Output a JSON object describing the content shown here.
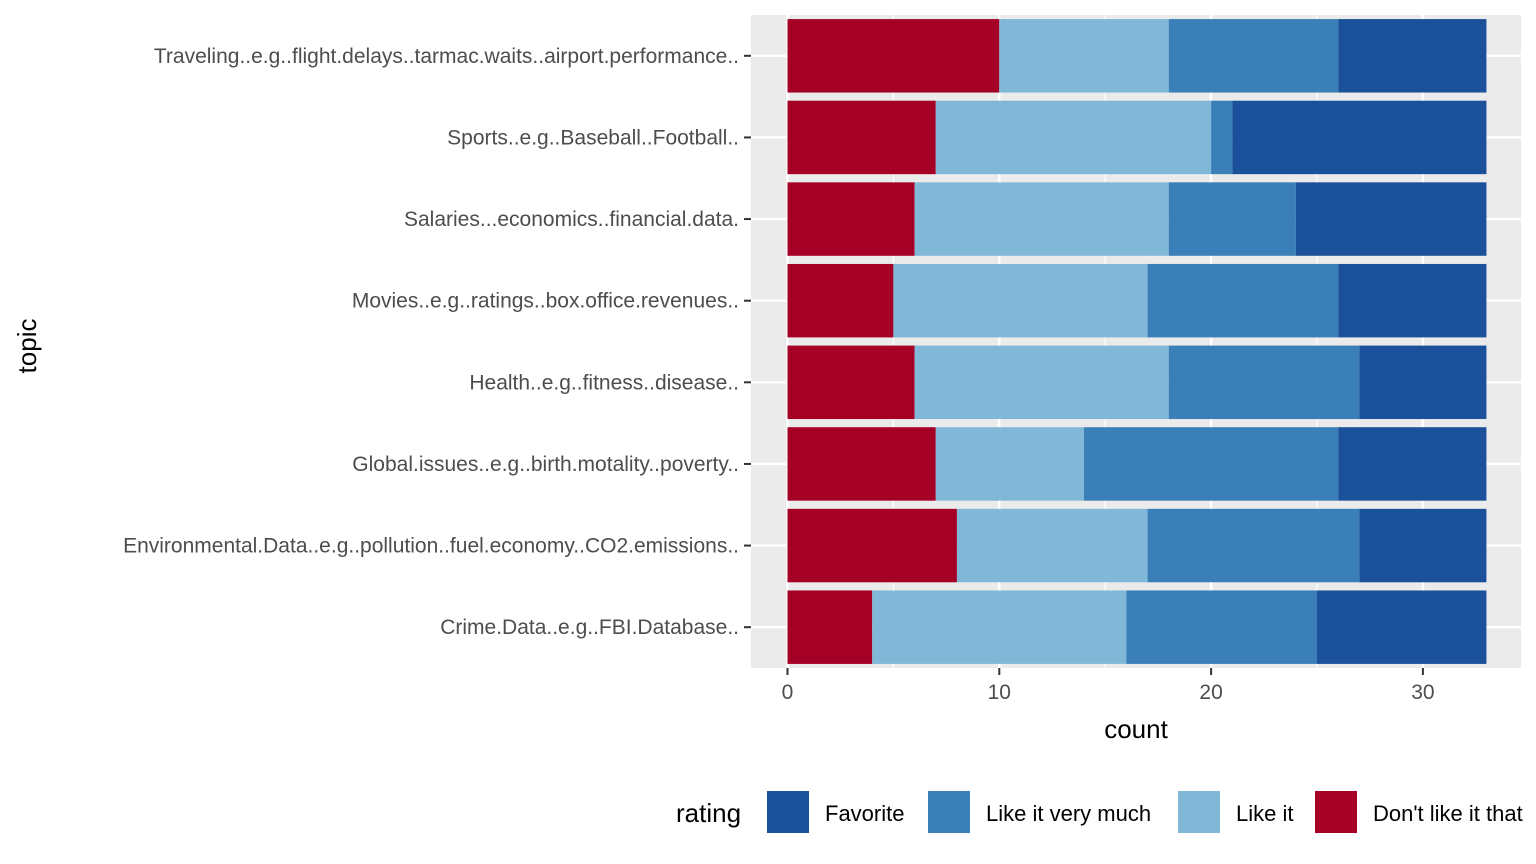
{
  "chart_data": {
    "type": "bar",
    "orientation": "horizontal",
    "stacked": true,
    "title": "",
    "xlabel": "count",
    "ylabel": "topic",
    "xlim": [
      0,
      33
    ],
    "x_ticks": [
      0,
      10,
      20,
      30
    ],
    "grid": true,
    "legend_position": "bottom",
    "legend_title": "rating",
    "categories": [
      "Traveling..e.g..flight.delays..tarmac.waits..airport.performance..",
      "Sports..e.g..Baseball..Football..",
      "Salaries...economics..financial.data.",
      "Movies..e.g..ratings..box.office.revenues..",
      "Health..e.g..fitness..disease..",
      "Global.issues..e.g..birth.motality..poverty..",
      "Environmental.Data..e.g..pollution..fuel.economy..CO2.emissions..",
      "Crime.Data..e.g..FBI.Database.."
    ],
    "series": [
      {
        "name": "Don't like it that",
        "color": "#a50026",
        "values": [
          10,
          7,
          6,
          5,
          6,
          7,
          8,
          4
        ]
      },
      {
        "name": "Like it",
        "color": "#82b8d7",
        "values": [
          8,
          13,
          12,
          12,
          12,
          7,
          9,
          12
        ]
      },
      {
        "name": "Like it very much",
        "color": "#3a7fb7",
        "values": [
          8,
          1,
          6,
          9,
          9,
          12,
          10,
          9
        ]
      },
      {
        "name": "Favorite",
        "color": "#1b519b",
        "values": [
          7,
          12,
          9,
          7,
          6,
          7,
          6,
          8
        ]
      }
    ],
    "legend_order": [
      "Favorite",
      "Like it very much",
      "Like it",
      "Don't like it that"
    ]
  }
}
